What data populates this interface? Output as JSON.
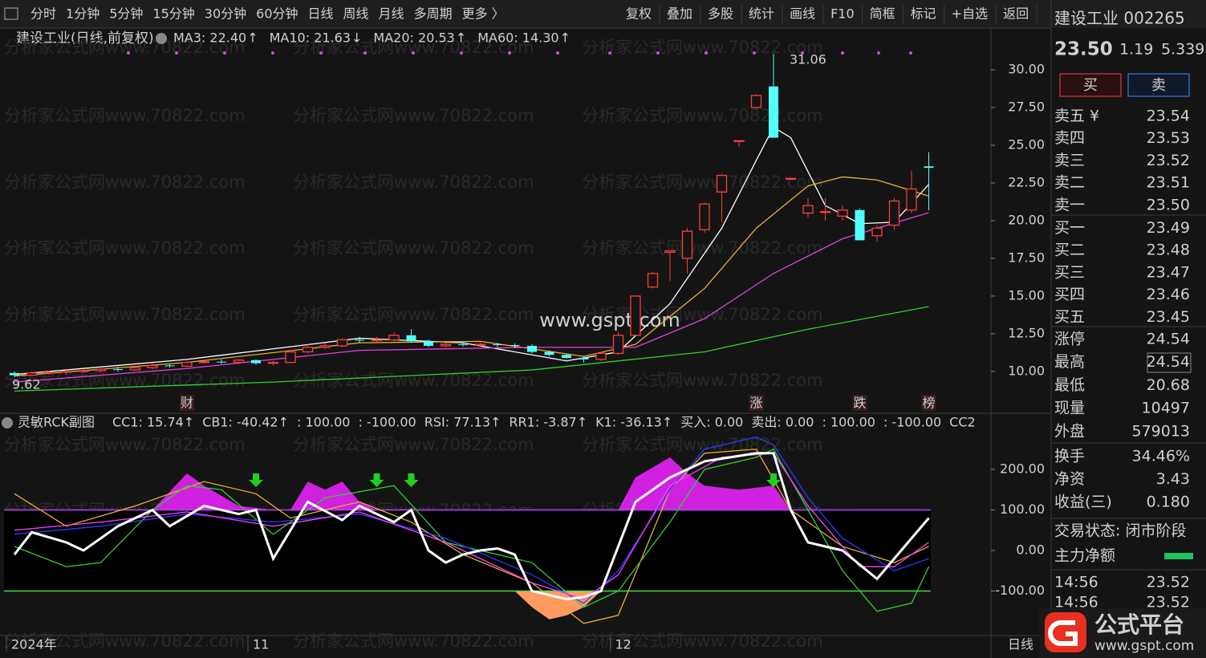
{
  "toolbar": {
    "left": [
      "分时",
      "1分钟",
      "5分钟",
      "15分钟",
      "30分钟",
      "60分钟",
      "日线",
      "周线",
      "月线",
      "多周期",
      "更多 〉"
    ],
    "active": "日线",
    "right": [
      "复权",
      "叠加",
      "多股",
      "统计",
      "画线",
      "F10",
      "简框",
      "标记",
      "+自选",
      "返回"
    ]
  },
  "watermark": "分析家公式网www.70822.com",
  "center_mark": "www.gspt.com",
  "chart_title": "建设工业(日线,前复权)",
  "ma_legend": [
    {
      "text": "MA3: 22.40",
      "arrow": "↑",
      "color": "#ffffff",
      "arrow_color": "#ff3030"
    },
    {
      "text": "MA10: 21.63",
      "arrow": "↓",
      "color": "#e8b030",
      "arrow_color": "#40ffff"
    },
    {
      "text": "MA20: 20.53",
      "arrow": "↑",
      "color": "#e040e0",
      "arrow_color": "#ff3030"
    },
    {
      "text": "MA60: 14.30",
      "arrow": "↑",
      "color": "#30d030",
      "arrow_color": "#ff3030"
    }
  ],
  "price_chart": {
    "type": "candlestick",
    "ylim": [
      8.56,
      32.5
    ],
    "yticks": [
      {
        "value": 10,
        "label": "10.00"
      },
      {
        "value": 12.5,
        "label": "12.50"
      },
      {
        "value": 15,
        "label": "15.00"
      },
      {
        "value": 17.5,
        "label": "17.50"
      },
      {
        "value": 20,
        "label": "20.00"
      },
      {
        "value": 22.5,
        "label": "22.50"
      },
      {
        "value": 25,
        "label": "25.00"
      },
      {
        "value": 27.5,
        "label": "27.50"
      },
      {
        "value": 30,
        "label": "30.00"
      }
    ],
    "up_color": "#ff3c3c",
    "down_color": "#54ffff",
    "candles": [
      [
        9.9,
        9.75,
        10.0,
        9.62
      ],
      [
        9.75,
        9.9,
        10.0,
        9.7
      ],
      [
        9.9,
        9.95,
        10.05,
        9.8
      ],
      [
        9.95,
        10.0,
        10.1,
        9.85
      ],
      [
        10.0,
        10.05,
        10.15,
        9.9
      ],
      [
        10.05,
        10.15,
        10.3,
        9.95
      ],
      [
        10.15,
        10.1,
        10.3,
        10.0
      ],
      [
        10.1,
        10.25,
        10.35,
        10.05
      ],
      [
        10.25,
        10.4,
        10.5,
        10.15
      ],
      [
        10.4,
        10.35,
        10.5,
        10.25
      ],
      [
        10.35,
        10.6,
        10.7,
        10.3
      ],
      [
        10.6,
        10.65,
        10.8,
        10.5
      ],
      [
        10.65,
        10.6,
        10.8,
        10.5
      ],
      [
        10.6,
        10.75,
        10.85,
        10.5
      ],
      [
        10.75,
        10.55,
        10.8,
        10.45
      ],
      [
        10.55,
        10.6,
        10.7,
        10.4
      ],
      [
        10.6,
        11.3,
        11.4,
        10.55
      ],
      [
        11.3,
        11.6,
        11.8,
        11.2
      ],
      [
        11.6,
        11.7,
        11.9,
        11.5
      ],
      [
        11.7,
        12.1,
        12.2,
        11.6
      ],
      [
        12.1,
        12.05,
        12.3,
        11.9
      ],
      [
        12.05,
        12.1,
        12.3,
        11.95
      ],
      [
        12.1,
        12.4,
        12.6,
        12.0
      ],
      [
        12.4,
        12.0,
        12.8,
        11.9
      ],
      [
        12.0,
        11.7,
        12.1,
        11.6
      ],
      [
        11.7,
        11.8,
        11.9,
        11.6
      ],
      [
        11.8,
        11.75,
        11.9,
        11.65
      ],
      [
        11.75,
        11.8,
        11.9,
        11.65
      ],
      [
        11.8,
        11.75,
        11.9,
        11.6
      ],
      [
        11.75,
        11.7,
        11.85,
        11.55
      ],
      [
        11.7,
        11.3,
        11.8,
        11.2
      ],
      [
        11.3,
        11.1,
        11.4,
        11.0
      ],
      [
        11.1,
        10.9,
        11.2,
        10.8
      ],
      [
        10.9,
        10.8,
        11.0,
        10.6
      ],
      [
        10.8,
        11.2,
        11.3,
        10.7
      ],
      [
        11.2,
        12.4,
        12.6,
        11.1
      ],
      [
        12.4,
        15.0,
        15.0,
        12.4
      ],
      [
        15.6,
        16.5,
        16.6,
        15.5
      ],
      [
        17.9,
        18.0,
        18.0,
        16.0
      ],
      [
        17.5,
        19.3,
        19.5,
        16.5
      ],
      [
        19.4,
        21.1,
        21.2,
        19.2
      ],
      [
        21.9,
        23.0,
        23.1,
        19.9
      ],
      [
        25.3,
        25.3,
        25.3,
        24.9
      ],
      [
        27.5,
        28.3,
        28.4,
        27.4
      ],
      [
        28.9,
        25.5,
        31.06,
        25.5
      ],
      [
        22.8,
        22.8,
        22.8,
        22.8
      ],
      [
        20.5,
        21.0,
        21.5,
        20.2
      ],
      [
        20.6,
        20.6,
        21.5,
        20.0
      ],
      [
        20.3,
        20.7,
        21.0,
        20.0
      ],
      [
        20.7,
        18.7,
        20.8,
        18.7
      ],
      [
        19.0,
        19.5,
        19.7,
        18.6
      ],
      [
        19.7,
        21.3,
        21.5,
        19.4
      ],
      [
        20.7,
        22.1,
        23.3,
        20.5
      ],
      [
        23.6,
        23.5,
        24.54,
        20.68
      ]
    ],
    "ma_lines": [
      {
        "color": "#ffffff",
        "x": [
          0,
          10,
          20,
          26,
          32,
          35,
          38,
          41,
          43,
          44,
          45,
          47,
          49,
          51,
          53
        ],
        "values": [
          9.8,
          10.8,
          12.2,
          11.9,
          10.7,
          11.3,
          14.5,
          19.5,
          24,
          26.2,
          25.5,
          21,
          19.8,
          19.9,
          22.4
        ]
      },
      {
        "color": "#e8b030",
        "x": [
          0,
          10,
          20,
          27,
          33,
          36,
          40,
          43,
          46,
          48,
          50,
          53
        ],
        "values": [
          9.7,
          10.6,
          11.9,
          12.0,
          11.0,
          11.8,
          15.5,
          19.5,
          22.3,
          22.9,
          22.7,
          21.63
        ]
      },
      {
        "color": "#e040e0",
        "x": [
          0,
          10,
          20,
          30,
          36,
          40,
          44,
          48,
          53
        ],
        "values": [
          9.3,
          10.2,
          11.4,
          11.6,
          11.6,
          13.5,
          16.5,
          18.8,
          20.53
        ]
      },
      {
        "color": "#30d030",
        "x": [
          0,
          15,
          30,
          40,
          46,
          53
        ],
        "values": [
          8.7,
          9.3,
          10.1,
          11.3,
          12.8,
          14.3
        ]
      }
    ],
    "annotations": [
      {
        "index": 44,
        "label": "31.06",
        "value": 31.06
      },
      {
        "index": 0,
        "label": "9.62",
        "value": 9.62
      }
    ],
    "event_markers": [
      {
        "index": 10,
        "label": "财",
        "color": "#3a7bff"
      },
      {
        "index": 43,
        "label": "涨",
        "color": "#ff4040"
      },
      {
        "index": 49,
        "label": "跌",
        "color": "#30d030"
      },
      {
        "index": 53,
        "label": "榜",
        "color": "#ff9a30"
      }
    ]
  },
  "indicator": {
    "type": "line",
    "title": "灵敏RCK副图",
    "ylim": [
      -205.9,
      279.2
    ],
    "legend": [
      {
        "text": "CC1: 15.74↑",
        "color": "#ff40ff"
      },
      {
        "text": "CB1: -40.42↑",
        "color": "#e8b030"
      },
      {
        "text": ": 100.00",
        "color": "#c040ff"
      },
      {
        "text": ": -100.00",
        "color": "#40e040"
      },
      {
        "text": "RSI: 77.13↑",
        "color": "#ffffff"
      },
      {
        "text": "RR1: -3.87↑",
        "color": "#2030ff"
      },
      {
        "text": "K1: -36.13↑",
        "color": "#30d030"
      },
      {
        "text": "买入: 0.00",
        "color": "#e8e020"
      },
      {
        "text": "卖出: 0.00",
        "color": "#ff4040"
      },
      {
        "text": ": 100.00",
        "color": "#40e040"
      },
      {
        "text": ": -100.00",
        "color": "#e8e020"
      },
      {
        "text": "CC2",
        "color": "#ff40ff"
      }
    ],
    "yticks": [
      {
        "value": -100,
        "label": "-100.00"
      },
      {
        "value": 0,
        "label": "0.00"
      },
      {
        "value": 100,
        "label": "100.00"
      },
      {
        "value": 200,
        "label": "200.00"
      }
    ],
    "bands": [
      {
        "value": 100,
        "color": "#c040ff"
      },
      {
        "value": -100,
        "color": "#40e040"
      }
    ],
    "fills": [
      {
        "color": "#d020e0",
        "base": 100,
        "x": [
          8,
          10,
          11,
          13,
          15,
          16,
          17,
          18,
          19,
          20,
          21,
          35,
          36,
          38,
          39,
          40,
          42,
          44,
          45
        ],
        "values": [
          100,
          190,
          160,
          110,
          100,
          100,
          170,
          150,
          170,
          120,
          100,
          100,
          180,
          230,
          190,
          160,
          150,
          160,
          100
        ]
      },
      {
        "color": "#ff9a60",
        "base": -100,
        "x": [
          29,
          30,
          31,
          32,
          33,
          34
        ],
        "values": [
          -100,
          -140,
          -170,
          -160,
          -140,
          -100
        ]
      }
    ],
    "series": [
      {
        "color": "#e8b030",
        "x": [
          0,
          3,
          7,
          11,
          14,
          16,
          20,
          23,
          26,
          30,
          33,
          35,
          38,
          40,
          43,
          45,
          48,
          51,
          53
        ],
        "values": [
          140,
          60,
          110,
          170,
          140,
          80,
          120,
          70,
          -10,
          -80,
          -180,
          -160,
          150,
          240,
          250,
          100,
          10,
          -30,
          10
        ]
      },
      {
        "color": "#30d030",
        "x": [
          0,
          3,
          5,
          8,
          10,
          12,
          15,
          18,
          22,
          25,
          30,
          33,
          35,
          38,
          40,
          43,
          44,
          46,
          48,
          50,
          52,
          53
        ],
        "values": [
          10,
          -40,
          -30,
          100,
          160,
          150,
          40,
          130,
          160,
          20,
          -30,
          -140,
          -100,
          70,
          200,
          230,
          250,
          100,
          -50,
          -150,
          -130,
          -40
        ]
      },
      {
        "color": "#2a3cff",
        "x": [
          0,
          5,
          10,
          15,
          20,
          25,
          30,
          33,
          35,
          38,
          40,
          43,
          44,
          46,
          48,
          51,
          53
        ],
        "values": [
          40,
          60,
          90,
          70,
          90,
          30,
          -60,
          -130,
          -50,
          150,
          250,
          280,
          260,
          130,
          30,
          -50,
          -20
        ]
      },
      {
        "color": "#ff40ff",
        "x": [
          0,
          5,
          10,
          15,
          20,
          25,
          30,
          33,
          35,
          38,
          41,
          44,
          46,
          49,
          51,
          53
        ],
        "values": [
          50,
          70,
          95,
          60,
          95,
          20,
          -80,
          -120,
          -60,
          160,
          230,
          240,
          110,
          -40,
          -40,
          20
        ]
      },
      {
        "color": "#ffffff",
        "x": [
          0,
          1,
          3,
          4,
          6,
          8,
          9,
          11,
          13,
          14,
          15,
          17,
          19,
          20,
          22,
          23,
          24,
          25,
          26,
          27,
          28,
          29,
          30,
          31,
          32,
          33,
          34,
          36,
          38,
          40,
          43,
          44,
          45,
          46,
          48,
          50,
          51,
          53
        ],
        "values": [
          -10,
          45,
          20,
          0,
          60,
          100,
          60,
          110,
          90,
          100,
          -20,
          120,
          75,
          110,
          70,
          100,
          0,
          -30,
          -10,
          0,
          5,
          -10,
          -100,
          -110,
          -120,
          -115,
          -100,
          120,
          180,
          220,
          240,
          240,
          100,
          20,
          0,
          -70,
          -20,
          80
        ]
      }
    ],
    "signal_arrows": [
      14,
      21,
      23,
      44
    ]
  },
  "x_labels": [
    {
      "value": 0,
      "label": "2024年"
    },
    {
      "value": 14,
      "label": "11"
    },
    {
      "value": 35,
      "label": "12"
    }
  ],
  "period": "日线",
  "quote": {
    "name": "建设工业 002265",
    "price": "23.50",
    "change": "1.19",
    "pct": "5.339",
    "buy": "买",
    "sell": "卖",
    "book": [
      [
        "卖五 ¥",
        "23.54"
      ],
      [
        "卖四",
        "23.53"
      ],
      [
        "卖三",
        "23.52"
      ],
      [
        "卖二",
        "23.51"
      ],
      [
        "卖一",
        "23.50"
      ],
      [
        "买一",
        "23.49"
      ],
      [
        "买二",
        "23.48"
      ],
      [
        "买三",
        "23.47"
      ],
      [
        "买四",
        "23.46"
      ],
      [
        "买五",
        "23.45"
      ]
    ],
    "stats": [
      [
        "涨停",
        "24.54"
      ],
      [
        "最高",
        "24.54"
      ],
      [
        "最低",
        "20.68"
      ],
      [
        "现量",
        "10497"
      ],
      [
        "外盘",
        "579013"
      ]
    ],
    "stats2": [
      [
        "换手",
        "34.46%"
      ],
      [
        "净资",
        "3.43"
      ],
      [
        "收益(三)",
        "0.180"
      ]
    ],
    "status": "交易状态: 闭市阶段",
    "flow": "主力净额",
    "ticks": [
      [
        "14:56",
        "23.52"
      ],
      [
        "14:56",
        "23.52"
      ]
    ]
  },
  "logo": {
    "title": "公式平台",
    "url": "www.gspt.com"
  }
}
